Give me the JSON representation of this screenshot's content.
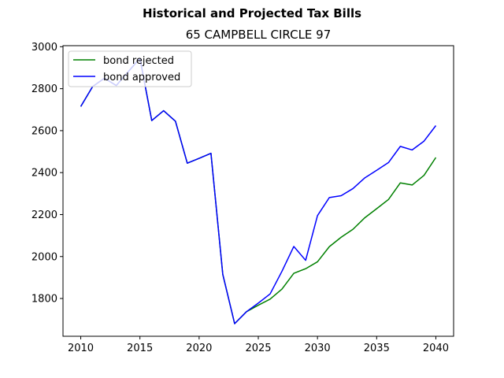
{
  "chart_data": {
    "type": "line",
    "suptitle": "Historical and Projected Tax Bills",
    "title": "65 CAMPBELL CIRCLE  97",
    "xlabel": "",
    "ylabel": "",
    "xlim": [
      2008.5,
      2041.5
    ],
    "ylim": [
      1620,
      3005
    ],
    "xticks": [
      2010,
      2015,
      2020,
      2025,
      2030,
      2035,
      2040
    ],
    "yticks": [
      1800,
      2000,
      2200,
      2400,
      2600,
      2800,
      3000
    ],
    "grid": false,
    "legend_position": "top-left",
    "x": [
      2010,
      2011,
      2012,
      2013,
      2014,
      2015,
      2016,
      2017,
      2018,
      2019,
      2020,
      2021,
      2022,
      2023,
      2024,
      2025,
      2026,
      2027,
      2028,
      2029,
      2030,
      2031,
      2032,
      2033,
      2034,
      2035,
      2036,
      2037,
      2038,
      2039,
      2040
    ],
    "series": [
      {
        "name": "bond rejected",
        "color": "#008000",
        "values": [
          2715,
          2810,
          2850,
          2815,
          2880,
          2945,
          2648,
          2695,
          2645,
          2445,
          2468,
          2492,
          1915,
          1680,
          1737,
          1768,
          1797,
          1845,
          1920,
          1942,
          1975,
          2047,
          2092,
          2130,
          2185,
          2228,
          2272,
          2351,
          2341,
          2387,
          2472
        ]
      },
      {
        "name": "bond approved",
        "color": "#0000ff",
        "values": [
          2715,
          2810,
          2850,
          2815,
          2880,
          2945,
          2648,
          2695,
          2645,
          2445,
          2468,
          2492,
          1915,
          1680,
          1737,
          1778,
          1822,
          1930,
          2048,
          1982,
          2195,
          2281,
          2290,
          2324,
          2375,
          2411,
          2448,
          2525,
          2508,
          2550,
          2624
        ]
      }
    ]
  }
}
